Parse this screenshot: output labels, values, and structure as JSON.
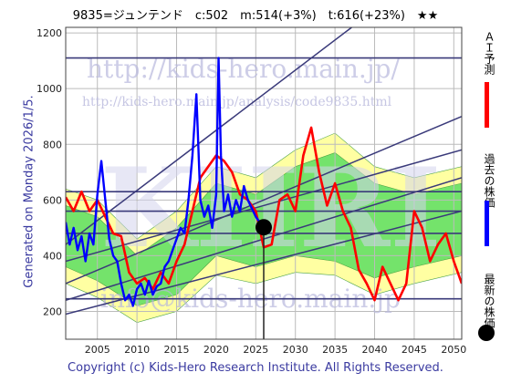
{
  "header": {
    "title": "9835=ジュンテンド　c:502　m:514(+3%)　t:616(+23%)　★★"
  },
  "side_label": "Generated on Monday 2026/1/5.",
  "footer": {
    "copyright": "Copyright (c) Kids-Hero Research Institute. All Rights Reserved."
  },
  "watermarks": {
    "site": "http://kids-hero.main.jp/",
    "page": "http://kids-hero.main.jp/analysis/code9835.html",
    "mail": "info@kids-hero.main.jp",
    "logo": "KHRI"
  },
  "legend": {
    "ai_forecast": {
      "label": "ＡＩ予測",
      "color": "#ff0000"
    },
    "past_price": {
      "label": "過去の株価",
      "color": "#0000ff"
    },
    "latest_price": {
      "label": "最新の株価",
      "color": "#000000"
    }
  },
  "chart_data": {
    "type": "line",
    "xlim": [
      2001,
      2051
    ],
    "ylim": [
      100,
      1220
    ],
    "x_ticks": [
      2005,
      2010,
      2015,
      2020,
      2025,
      2030,
      2035,
      2040,
      2045,
      2050
    ],
    "y_ticks": [
      200,
      400,
      600,
      800,
      1000,
      1200
    ],
    "grid": true,
    "latest_point": {
      "x": 2026.0,
      "y": 502
    },
    "horizontal_lines": [
      1110,
      630,
      560,
      480,
      245
    ],
    "trend_lines": [
      {
        "x": [
          2001,
          2051
        ],
        "y": [
          440,
          1520
        ]
      },
      {
        "x": [
          2001,
          2051
        ],
        "y": [
          300,
          900
        ]
      },
      {
        "x": [
          2001,
          2051
        ],
        "y": [
          380,
          780
        ]
      },
      {
        "x": [
          2001,
          2051
        ],
        "y": [
          240,
          680
        ]
      },
      {
        "x": [
          2001,
          2051
        ],
        "y": [
          190,
          560
        ]
      }
    ],
    "series": [
      {
        "key": "ai",
        "color": "#ff0000",
        "x": [
          2001,
          2002,
          2003,
          2004,
          2005,
          2006,
          2007,
          2008,
          2009,
          2010,
          2011,
          2012,
          2013,
          2014,
          2015,
          2016,
          2017,
          2018,
          2019,
          2020,
          2021,
          2022,
          2023,
          2024,
          2025,
          2026,
          2027,
          2028,
          2029,
          2030,
          2031,
          2032,
          2033,
          2034,
          2035,
          2036,
          2037,
          2038,
          2039,
          2040,
          2041,
          2042,
          2043,
          2044,
          2045,
          2046,
          2047,
          2048,
          2049,
          2050,
          2051
        ],
        "y": [
          610,
          560,
          630,
          560,
          600,
          540,
          480,
          470,
          340,
          300,
          320,
          280,
          340,
          300,
          380,
          440,
          560,
          680,
          720,
          760,
          740,
          700,
          620,
          600,
          560,
          430,
          440,
          600,
          620,
          560,
          760,
          860,
          700,
          580,
          660,
          560,
          500,
          350,
          300,
          240,
          360,
          300,
          240,
          300,
          560,
          500,
          380,
          440,
          480,
          380,
          300
        ]
      },
      {
        "key": "past",
        "color": "#0000ff",
        "x": [
          2001,
          2001.5,
          2002,
          2002.5,
          2003,
          2003.5,
          2004,
          2004.5,
          2005,
          2005.5,
          2006,
          2006.5,
          2007,
          2007.5,
          2008,
          2008.5,
          2009,
          2009.5,
          2010,
          2010.5,
          2011,
          2011.5,
          2012,
          2012.5,
          2013,
          2013.5,
          2014,
          2014.5,
          2015,
          2015.5,
          2016,
          2016.5,
          2017,
          2017.5,
          2018,
          2018.5,
          2019,
          2019.5,
          2020,
          2020.3,
          2020.6,
          2021,
          2021.5,
          2022,
          2022.5,
          2023,
          2023.5,
          2024,
          2024.5,
          2025,
          2025.5
        ],
        "y": [
          520,
          440,
          500,
          420,
          470,
          380,
          480,
          440,
          620,
          740,
          600,
          460,
          400,
          380,
          300,
          240,
          260,
          220,
          280,
          300,
          260,
          310,
          260,
          290,
          300,
          360,
          380,
          420,
          460,
          500,
          480,
          600,
          760,
          980,
          600,
          540,
          580,
          500,
          620,
          1110,
          760,
          560,
          620,
          540,
          600,
          560,
          650,
          600,
          570,
          540,
          520
        ]
      }
    ],
    "bands": [
      {
        "color": "#ffff99",
        "x": [
          2001,
          2005,
          2010,
          2015,
          2020,
          2025,
          2030,
          2035,
          2040,
          2045,
          2051
        ],
        "upper": [
          640,
          600,
          460,
          560,
          720,
          680,
          780,
          840,
          720,
          680,
          720
        ],
        "lower": [
          300,
          250,
          160,
          200,
          330,
          300,
          340,
          330,
          260,
          300,
          340
        ]
      },
      {
        "color": "#66e066",
        "x": [
          2001,
          2005,
          2010,
          2015,
          2020,
          2025,
          2030,
          2035,
          2040,
          2045,
          2051
        ],
        "upper": [
          580,
          540,
          400,
          500,
          660,
          620,
          720,
          770,
          660,
          620,
          660
        ],
        "lower": [
          360,
          310,
          220,
          260,
          400,
          360,
          400,
          380,
          320,
          360,
          400
        ]
      }
    ]
  }
}
